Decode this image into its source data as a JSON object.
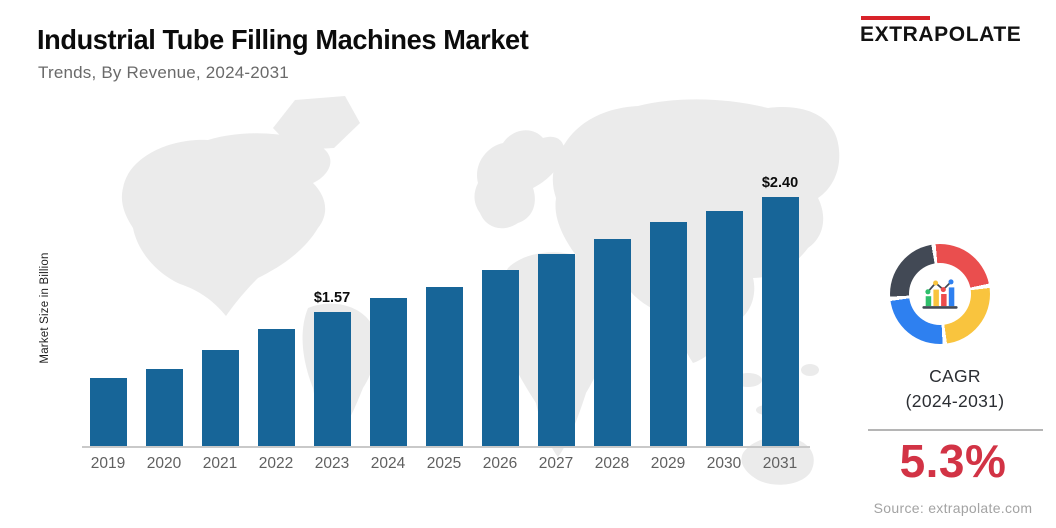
{
  "header": {
    "title": "Industrial Tube Filling Machines Market",
    "subtitle": "Trends, By Revenue,  2024-2031"
  },
  "logo": {
    "text": "EXTRAPOLATE",
    "accent_color": "#d8232a"
  },
  "chart_data": {
    "type": "bar",
    "title": "Industrial Tube Filling Machines Market",
    "subtitle": "Trends, By Revenue, 2024-2031",
    "ylabel": "Market Size in Billion",
    "xlabel": "",
    "categories": [
      "2019",
      "2020",
      "2021",
      "2022",
      "2023",
      "2024",
      "2025",
      "2026",
      "2027",
      "2028",
      "2029",
      "2030",
      "2031"
    ],
    "values": [
      1.1,
      1.16,
      1.3,
      1.45,
      1.57,
      1.67,
      1.75,
      1.87,
      1.99,
      2.1,
      2.22,
      2.3,
      2.4
    ],
    "data_labels": [
      {
        "category": "2023",
        "text": "$1.57"
      },
      {
        "category": "2031",
        "text": "$2.40"
      }
    ],
    "bar_color": "#176598",
    "grid": false,
    "legend": false,
    "background": "light-gray world map silhouette"
  },
  "side_panel": {
    "icon": "cagr-donut-chart-icon",
    "icon_colors": {
      "red": "#ea4e4e",
      "yellow": "#f9c43e",
      "blue": "#2e80f0",
      "charcoal": "#424955",
      "green": "#2fbf6b"
    },
    "cagr_label": "CAGR",
    "cagr_period": "(2024-2031)",
    "cagr_value": "5.3%",
    "value_color": "#d23345",
    "source": "Source: extrapolate.com"
  }
}
